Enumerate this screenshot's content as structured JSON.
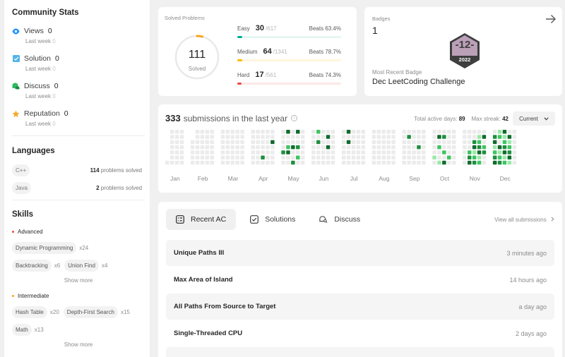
{
  "community": {
    "title": "Community Stats",
    "last_week_label": "Last week",
    "items": [
      {
        "label": "Views",
        "value": "0",
        "last_week": "0",
        "color": "#1890ff",
        "icon": "eye-icon"
      },
      {
        "label": "Solution",
        "value": "0",
        "last_week": "0",
        "color": "#53b4e8",
        "icon": "checkbox-icon"
      },
      {
        "label": "Discuss",
        "value": "0",
        "last_week": "0",
        "color": "#2cbb5d",
        "icon": "chat-icon"
      },
      {
        "label": "Reputation",
        "value": "0",
        "last_week": "0",
        "color": "#f8a82a",
        "icon": "star-icon"
      }
    ]
  },
  "languages": {
    "title": "Languages",
    "items": [
      {
        "name": "C++",
        "count": "114",
        "suffix": "problems solved"
      },
      {
        "name": "Java",
        "count": "2",
        "suffix": "problems solved"
      }
    ]
  },
  "skills": {
    "title": "Skills",
    "show_more": "Show more",
    "groups": [
      {
        "level": "Advanced",
        "dot_color": "#ef4743",
        "tags": [
          {
            "name": "Dynamic Programming",
            "count": "x24"
          },
          {
            "name": "Backtracking",
            "count": "x6"
          },
          {
            "name": "Union Find",
            "count": "x4"
          }
        ]
      },
      {
        "level": "Intermediate",
        "dot_color": "#ffa116",
        "tags": [
          {
            "name": "Hash Table",
            "count": "x20"
          },
          {
            "name": "Depth-First Search",
            "count": "x15"
          },
          {
            "name": "Math",
            "count": "x13"
          }
        ]
      }
    ]
  },
  "solved": {
    "title": "Solved Problems",
    "total": "111",
    "total_label": "Solved",
    "ring_fraction": 0.04,
    "beats_label": "Beats",
    "rows": [
      {
        "label": "Easy",
        "solved": "30",
        "total": "/617",
        "beats": "63.4%",
        "fraction": 0.049,
        "color": "#00af9b",
        "track": "#e6f7f3"
      },
      {
        "label": "Medium",
        "solved": "64",
        "total": "/1341",
        "beats": "78.7%",
        "fraction": 0.048,
        "color": "#ffb800",
        "track": "#fff6dc"
      },
      {
        "label": "Hard",
        "solved": "17",
        "total": "/561",
        "beats": "74.3%",
        "fraction": 0.03,
        "color": "#ef4743",
        "track": "#fde7e7"
      }
    ]
  },
  "badges": {
    "label": "Badges",
    "count": "1",
    "badge_text": "-12-",
    "badge_year": "2022",
    "recent_label": "Most Recent Badge",
    "recent_name": "Dec LeetCoding Challenge"
  },
  "submissions": {
    "count": "333",
    "text": "submissions in the last year",
    "active_days_label": "Total active days:",
    "active_days": "89",
    "max_streak_label": "Max streak:",
    "max_streak": "42",
    "period": "Current",
    "months": [
      "Jan",
      "Feb",
      "Mar",
      "Apr",
      "May",
      "Jun",
      "Jul",
      "Aug",
      "Sep",
      "Oct",
      "Nov",
      "Dec"
    ]
  },
  "recent": {
    "tabs": [
      {
        "label": "Recent AC",
        "icon": "list-icon"
      },
      {
        "label": "Solutions",
        "icon": "solution-icon"
      },
      {
        "label": "Discuss",
        "icon": "discuss-icon"
      }
    ],
    "view_all": "View all submissions",
    "items": [
      {
        "title": "Unique Paths III",
        "time": "3 minutes ago"
      },
      {
        "title": "Max Area of Island",
        "time": "14 hours ago"
      },
      {
        "title": "All Paths From Source to Target",
        "time": "a day ago"
      },
      {
        "title": "Single-Threaded CPU",
        "time": "2 days ago"
      }
    ]
  }
}
